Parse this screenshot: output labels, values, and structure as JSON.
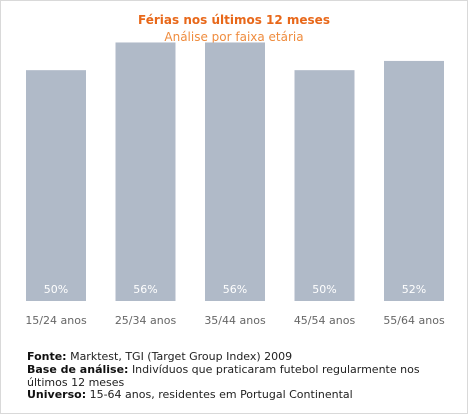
{
  "chart_data": {
    "type": "bar",
    "title": "Férias nos últimos 12 meses",
    "subtitle": "Análise por faixa etária",
    "categories": [
      "15/24 anos",
      "25/34 anos",
      "35/44 anos",
      "45/54 anos",
      "55/64 anos"
    ],
    "values": [
      50,
      56,
      56,
      50,
      52
    ],
    "value_labels": [
      "50%",
      "56%",
      "56%",
      "50%",
      "52%"
    ],
    "unit": "%",
    "ylim": [
      0,
      60
    ],
    "grid": false,
    "legend": "none",
    "bar_color": "#b0bac8",
    "value_label_color": "#ffffff",
    "title_color": "#e8681a",
    "subtitle_color": "#ef8c3e",
    "xlabel": "",
    "ylabel": ""
  },
  "footer": {
    "source_label": "Fonte:",
    "source_text": "Marktest, TGI (Target Group Index) 2009",
    "base_label": "Base de análise:",
    "base_text": "Indivíduos que praticaram futebol regularmente nos últimos 12 meses",
    "universe_label": "Universo:",
    "universe_text": "15-64 anos, residentes em Portugal Continental"
  }
}
